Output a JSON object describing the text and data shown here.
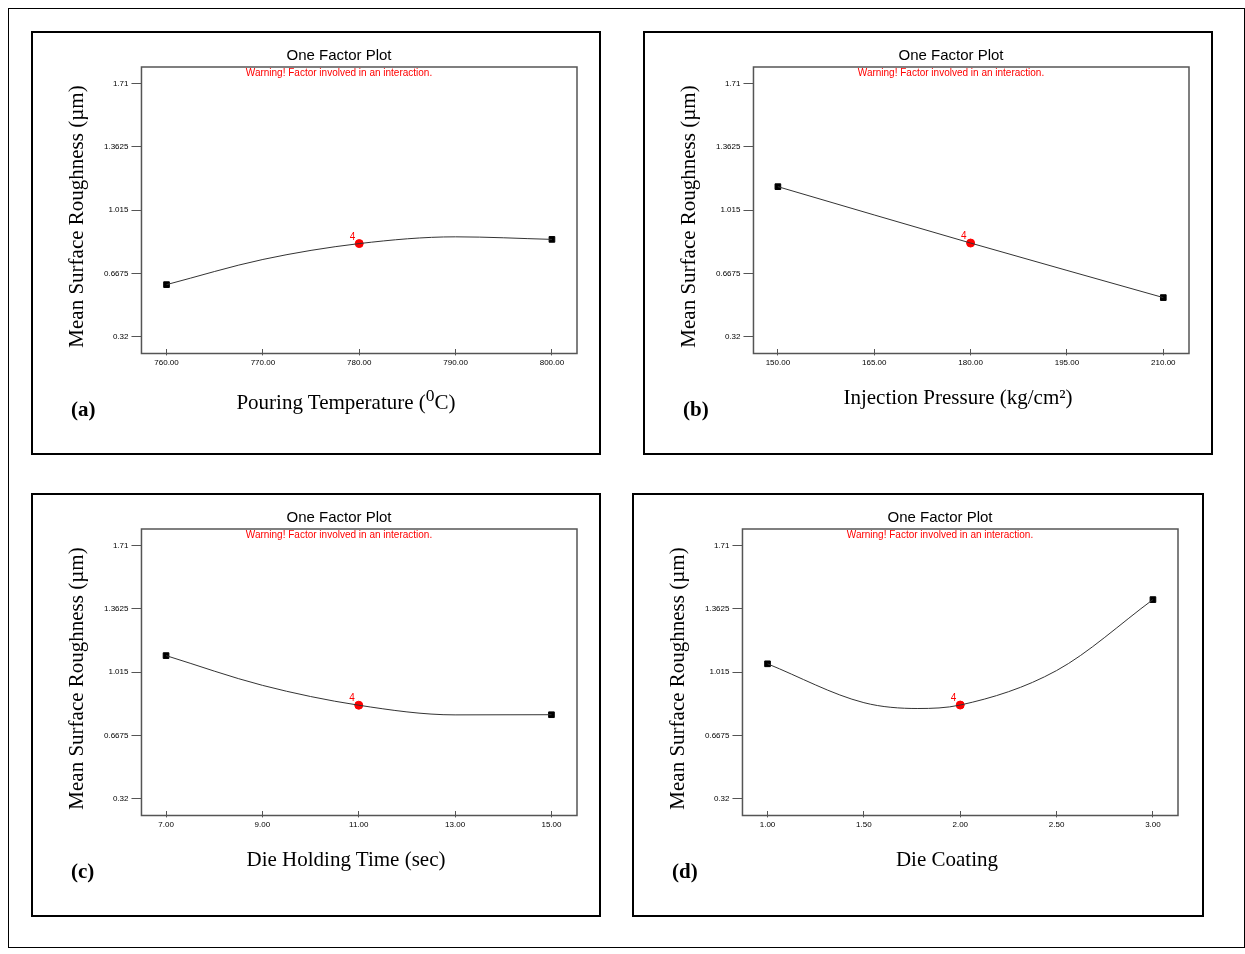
{
  "chart_data": [
    {
      "type": "line",
      "title": "One Factor Plot",
      "subtitle": "Warning! Factor involved in an interaction.",
      "xlabel": "Pouring Temperature ($^{0}$C)",
      "ylabel": "Mean Surface Roughness (µm)",
      "annotations": [
        "(a)",
        {
          "text": "4",
          "x": 780,
          "y": 0.832
        }
      ],
      "grid": false,
      "legend": false,
      "xlim": [
        757.4,
        802.6
      ],
      "xticks": [
        {
          "value": 760,
          "label": "760.00"
        },
        {
          "value": 770,
          "label": "770.00"
        },
        {
          "value": 780,
          "label": "780.00"
        },
        {
          "value": 790,
          "label": "790.00"
        },
        {
          "value": 800,
          "label": "800.00"
        }
      ],
      "ylim": [
        0.23,
        1.8
      ],
      "yticks": [
        0.32,
        0.6675,
        1.015,
        1.3625,
        1.71
      ],
      "series": [
        {
          "type": "line",
          "color": "#333333",
          "marker": "none",
          "x": [
            760,
            770,
            780,
            790,
            800
          ],
          "values": [
            0.607,
            0.745,
            0.832,
            0.869,
            0.855
          ]
        },
        {
          "type": "scatter",
          "color": "#000000",
          "marker": "square",
          "x": [
            760,
            800
          ],
          "values": [
            0.607,
            0.855
          ]
        },
        {
          "type": "scatter",
          "color": "#ff0000",
          "marker": "circle",
          "x": [
            780
          ],
          "values": [
            0.832
          ]
        }
      ]
    },
    {
      "type": "line",
      "title": "One Factor Plot",
      "subtitle": "Warning! Factor involved in an interaction.",
      "xlabel": "Injection Pressure (kg/cm²)",
      "ylabel": "Mean Surface Roughness (µm)",
      "annotations": [
        "(b)",
        {
          "text": "4",
          "x": 180,
          "y": 0.835
        }
      ],
      "grid": false,
      "legend": false,
      "xlim": [
        146.2,
        214
      ],
      "xticks": [
        {
          "value": 150,
          "label": "150.00"
        },
        {
          "value": 165,
          "label": "165.00"
        },
        {
          "value": 180,
          "label": "180.00"
        },
        {
          "value": 195,
          "label": "195.00"
        },
        {
          "value": 210,
          "label": "210.00"
        }
      ],
      "ylim": [
        0.23,
        1.8
      ],
      "yticks": [
        0.32,
        0.6675,
        1.015,
        1.3625,
        1.71
      ],
      "series": [
        {
          "type": "line",
          "color": "#333333",
          "marker": "none",
          "x": [
            150,
            180,
            210
          ],
          "values": [
            1.144,
            0.835,
            0.536
          ]
        },
        {
          "type": "scatter",
          "color": "#000000",
          "marker": "square",
          "x": [
            150,
            210
          ],
          "values": [
            1.144,
            0.536
          ]
        },
        {
          "type": "scatter",
          "color": "#ff0000",
          "marker": "circle",
          "x": [
            180
          ],
          "values": [
            0.835
          ]
        }
      ]
    },
    {
      "type": "line",
      "title": "One Factor Plot",
      "subtitle": "Warning! Factor involved in an interaction.",
      "xlabel": "Die Holding Time (sec)",
      "ylabel": "Mean Surface Roughness (µm)",
      "annotations": [
        "(c)",
        {
          "text": "4",
          "x": 11,
          "y": 0.834
        }
      ],
      "grid": false,
      "legend": false,
      "xlim": [
        6.49,
        15.53
      ],
      "xticks": [
        {
          "value": 7,
          "label": "7.00"
        },
        {
          "value": 9,
          "label": "9.00"
        },
        {
          "value": 11,
          "label": "11.00"
        },
        {
          "value": 13,
          "label": "13.00"
        },
        {
          "value": 15,
          "label": "15.00"
        }
      ],
      "ylim": [
        0.23,
        1.8
      ],
      "yticks": [
        0.32,
        0.6675,
        1.015,
        1.3625,
        1.71
      ],
      "series": [
        {
          "type": "line",
          "color": "#333333",
          "marker": "none",
          "x": [
            7,
            9,
            11,
            13,
            15
          ],
          "values": [
            1.106,
            0.943,
            0.834,
            0.781,
            0.782
          ]
        },
        {
          "type": "scatter",
          "color": "#000000",
          "marker": "square",
          "x": [
            7,
            15
          ],
          "values": [
            1.106,
            0.782
          ]
        },
        {
          "type": "scatter",
          "color": "#ff0000",
          "marker": "circle",
          "x": [
            11
          ],
          "values": [
            0.834
          ]
        }
      ]
    },
    {
      "type": "line",
      "title": "One Factor Plot",
      "subtitle": "Warning! Factor involved in an interaction.",
      "xlabel": "Die Coating",
      "ylabel": "Mean Surface Roughness (µm)",
      "annotations": [
        "(d)",
        {
          "text": "4",
          "x": 2,
          "y": 0.835
        }
      ],
      "grid": false,
      "legend": false,
      "xlim": [
        0.87,
        3.13
      ],
      "xticks": [
        {
          "value": 1,
          "label": "1.00"
        },
        {
          "value": 1.5,
          "label": "1.50"
        },
        {
          "value": 2,
          "label": "2.00"
        },
        {
          "value": 2.5,
          "label": "2.50"
        },
        {
          "value": 3,
          "label": "3.00"
        }
      ],
      "ylim": [
        0.23,
        1.8
      ],
      "yticks": [
        0.32,
        0.6675,
        1.015,
        1.3625,
        1.71
      ],
      "series": [
        {
          "type": "line",
          "color": "#333333",
          "marker": "none",
          "x": [
            1,
            1.5,
            1.78,
            2,
            2.5,
            3
          ],
          "values": [
            1.061,
            0.848,
            0.816,
            0.835,
            1.024,
            1.413
          ]
        },
        {
          "type": "scatter",
          "color": "#000000",
          "marker": "square",
          "x": [
            1,
            3
          ],
          "values": [
            1.061,
            1.413
          ]
        },
        {
          "type": "scatter",
          "color": "#ff0000",
          "marker": "circle",
          "x": [
            2
          ],
          "values": [
            0.835
          ]
        }
      ]
    }
  ]
}
